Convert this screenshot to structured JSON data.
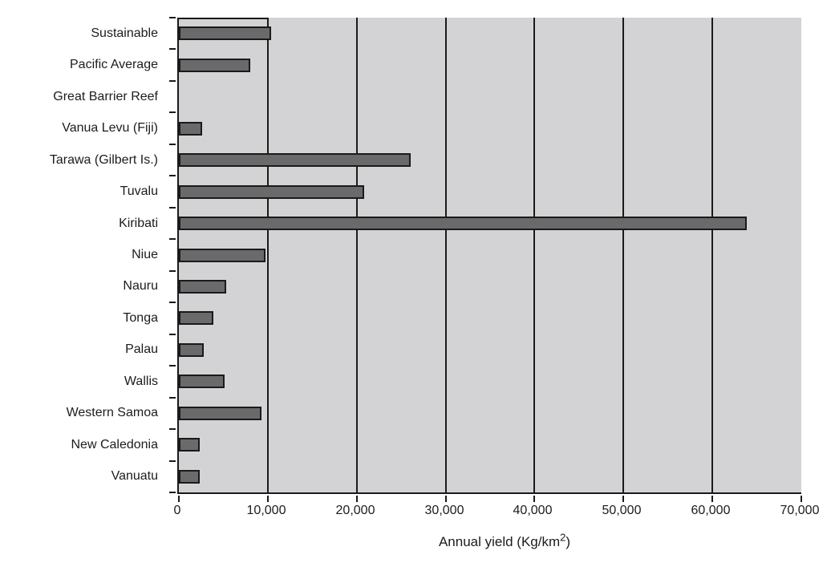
{
  "chart_data": {
    "type": "bar",
    "orientation": "horizontal",
    "title": "",
    "categories": [
      "Sustainable",
      "Pacific Average",
      "Great Barrier Reef",
      "Vanua Levu (Fiji)",
      "Tarawa (Gilbert Is.)",
      "Tuvalu",
      "Kiribati",
      "Niue",
      "Nauru",
      "Tonga",
      "Palau",
      "Wallis",
      "Western Samoa",
      "New Caledonia",
      "Vanuatu"
    ],
    "values": [
      10000,
      7700,
      0,
      2300,
      25700,
      20500,
      63500,
      9400,
      5000,
      3500,
      2400,
      4800,
      8900,
      2000,
      2000
    ],
    "xlabel": "Annual yield (Kg/km2)",
    "xlabel_pre": "Annual yield (Kg/km",
    "xlabel_sup": "2",
    "xlabel_post": ")",
    "xlim": [
      0,
      70000
    ],
    "x_tick_step": 10000,
    "x_tick_labels": [
      "0",
      "10,000",
      "20,000",
      "30,000",
      "40,000",
      "50,000",
      "60,000",
      "70,000"
    ],
    "grid": "vertical-only",
    "legend": "none",
    "colors": {
      "bar_fill": "#6a6a6a",
      "bar_border": "#1a1a1a",
      "plot_background": "#d3d3d5",
      "axis_line": "#1a1a1a",
      "label_text": "#1c1c1c",
      "page_background": "#ffffff"
    }
  }
}
